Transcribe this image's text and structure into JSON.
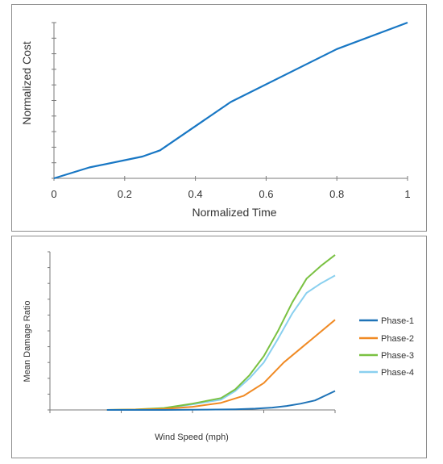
{
  "chart_data": [
    {
      "type": "line",
      "title": "",
      "xlabel": "Normalized Time",
      "ylabel": "Normalized Cost",
      "xlim": [
        0,
        1
      ],
      "ylim": [
        0,
        1
      ],
      "x_ticks": [
        "0",
        "0.2",
        "0.4",
        "0.6",
        "0.8",
        "1"
      ],
      "y_ticks_labeled": false,
      "grid": false,
      "legend": "none",
      "series": [
        {
          "color": "#1877c4",
          "x": [
            0,
            0.1,
            0.25,
            0.3,
            0.5,
            0.8,
            1.0
          ],
          "y": [
            0,
            0.07,
            0.14,
            0.18,
            0.49,
            0.83,
            1.0
          ]
        }
      ]
    },
    {
      "type": "line",
      "title": "",
      "xlabel": "Wind Speed (mph)",
      "ylabel": "Mean Damage Ratio",
      "xlim": [
        0,
        100
      ],
      "ylim": [
        0,
        1
      ],
      "x_ticks_labeled": false,
      "y_ticks_labeled": false,
      "grid": false,
      "legend": "right",
      "series": [
        {
          "name": "Phase-1",
          "color": "#1f73b7",
          "x": [
            20,
            40,
            55,
            65,
            72,
            78,
            83,
            88,
            93,
            100
          ],
          "y": [
            0,
            0.0,
            0.002,
            0.004,
            0.008,
            0.015,
            0.025,
            0.04,
            0.06,
            0.12
          ]
        },
        {
          "name": "Phase-2",
          "color": "#f08a24",
          "x": [
            20,
            30,
            40,
            50,
            60,
            68,
            75,
            82,
            90,
            100
          ],
          "y": [
            0,
            0.002,
            0.006,
            0.02,
            0.045,
            0.09,
            0.17,
            0.3,
            0.42,
            0.57
          ]
        },
        {
          "name": "Phase-3",
          "color": "#7ac142",
          "x": [
            20,
            30,
            40,
            50,
            60,
            65,
            70,
            75,
            80,
            85,
            90,
            95,
            100
          ],
          "y": [
            0,
            0.003,
            0.012,
            0.04,
            0.075,
            0.13,
            0.22,
            0.34,
            0.5,
            0.68,
            0.83,
            0.91,
            0.98
          ]
        },
        {
          "name": "Phase-4",
          "color": "#8ad0ef",
          "x": [
            20,
            30,
            40,
            50,
            60,
            65,
            70,
            75,
            80,
            85,
            90,
            95,
            100
          ],
          "y": [
            0,
            0.002,
            0.01,
            0.035,
            0.065,
            0.12,
            0.2,
            0.3,
            0.45,
            0.61,
            0.74,
            0.8,
            0.85
          ]
        }
      ]
    }
  ]
}
